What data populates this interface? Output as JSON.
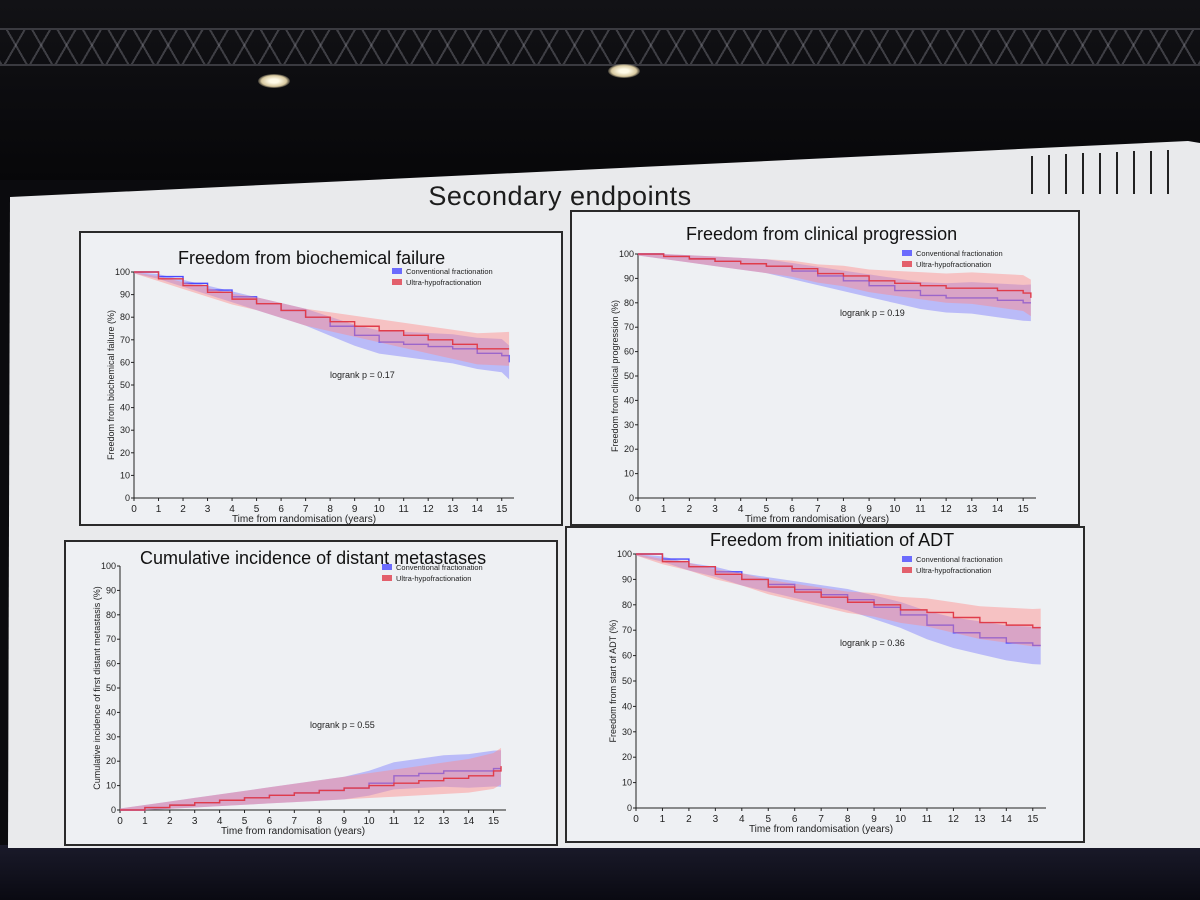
{
  "slide": {
    "title": "Secondary endpoints"
  },
  "colors": {
    "conventional": "#4a4aff",
    "ultra": "#e03c4a",
    "conventional_band": "#7b7bff",
    "ultra_band": "#ff8a8a"
  },
  "chart_data": [
    {
      "type": "line",
      "title": "Freedom from biochemical failure",
      "ylabel": "Freedom from biochemical failure (%)",
      "xlabel": "Time from randomisation (years)",
      "xlim": [
        0,
        15.5
      ],
      "ylim": [
        0,
        100
      ],
      "xticks": [
        "0",
        "1",
        "2",
        "3",
        "4",
        "5",
        "6",
        "7",
        "8",
        "9",
        "10",
        "11",
        "12",
        "13",
        "14",
        "15"
      ],
      "yticks": [
        "0",
        "10",
        "20",
        "30",
        "40",
        "50",
        "60",
        "70",
        "80",
        "90",
        "100"
      ],
      "annotation": "logrank p = 0.17",
      "legend_position": "top-right",
      "series": [
        {
          "name": "Conventional fractionation",
          "x": [
            0,
            1,
            2,
            3,
            4,
            5,
            6,
            7,
            8,
            9,
            10,
            11,
            12,
            13,
            14,
            15,
            15.3
          ],
          "values": [
            100,
            98,
            95,
            92,
            89,
            86,
            83,
            80,
            76,
            72,
            69,
            68,
            67,
            66,
            64,
            63,
            60
          ]
        },
        {
          "name": "Ultra-hypofractionation",
          "x": [
            0,
            1,
            2,
            3,
            4,
            5,
            6,
            7,
            8,
            9,
            10,
            11,
            12,
            13,
            14,
            15,
            15.3
          ],
          "values": [
            100,
            97,
            94,
            91,
            88,
            86,
            83,
            80,
            78,
            76,
            74,
            72,
            70,
            68,
            66,
            66,
            66
          ]
        }
      ]
    },
    {
      "type": "line",
      "title": "Freedom from clinical progression",
      "ylabel": "Freedom from clinical progression (%)",
      "xlabel": "Time from randomisation (years)",
      "xlim": [
        0,
        15.5
      ],
      "ylim": [
        0,
        100
      ],
      "xticks": [
        "0",
        "1",
        "2",
        "3",
        "4",
        "5",
        "6",
        "7",
        "8",
        "9",
        "10",
        "11",
        "12",
        "13",
        "14",
        "15"
      ],
      "yticks": [
        "0",
        "10",
        "20",
        "30",
        "40",
        "50",
        "60",
        "70",
        "80",
        "90",
        "100"
      ],
      "annotation": "logrank p = 0.19",
      "legend_position": "top-right",
      "series": [
        {
          "name": "Conventional fractionation",
          "x": [
            0,
            1,
            2,
            3,
            4,
            5,
            6,
            7,
            8,
            9,
            10,
            11,
            12,
            13,
            14,
            15,
            15.3
          ],
          "values": [
            100,
            99,
            98,
            97,
            96,
            95,
            93,
            91,
            89,
            87,
            85,
            83,
            82,
            82,
            81,
            80,
            80
          ]
        },
        {
          "name": "Ultra-hypofractionation",
          "x": [
            0,
            1,
            2,
            3,
            4,
            5,
            6,
            7,
            8,
            9,
            10,
            11,
            12,
            13,
            14,
            15,
            15.3
          ],
          "values": [
            100,
            99,
            98,
            97,
            96,
            95,
            94,
            92,
            91,
            89,
            88,
            87,
            86,
            86,
            85,
            84,
            82
          ]
        }
      ]
    },
    {
      "type": "line",
      "title": "Cumulative incidence of distant metastases",
      "ylabel": "Cumulative incidence of first distant metastasis (%)",
      "xlabel": "Time from randomisation (years)",
      "xlim": [
        0,
        15.5
      ],
      "ylim": [
        0,
        100
      ],
      "xticks": [
        "0",
        "1",
        "2",
        "3",
        "4",
        "5",
        "6",
        "7",
        "8",
        "9",
        "10",
        "11",
        "12",
        "13",
        "14",
        "15"
      ],
      "yticks": [
        "0",
        "10",
        "20",
        "30",
        "40",
        "50",
        "60",
        "70",
        "80",
        "90",
        "100"
      ],
      "annotation": "logrank p = 0.55",
      "legend_position": "top-right",
      "series": [
        {
          "name": "Conventional fractionation",
          "x": [
            0,
            1,
            2,
            3,
            4,
            5,
            6,
            7,
            8,
            9,
            10,
            11,
            12,
            13,
            14,
            15,
            15.3
          ],
          "values": [
            0,
            1,
            2,
            3,
            4,
            5,
            6,
            7,
            8,
            9,
            11,
            14,
            15,
            16,
            16,
            17,
            17
          ]
        },
        {
          "name": "Ultra-hypofractionation",
          "x": [
            0,
            1,
            2,
            3,
            4,
            5,
            6,
            7,
            8,
            9,
            10,
            11,
            12,
            13,
            14,
            15,
            15.3
          ],
          "values": [
            0,
            1,
            2,
            3,
            4,
            5,
            6,
            7,
            8,
            9,
            10,
            11,
            12,
            13,
            14,
            16,
            18
          ]
        }
      ]
    },
    {
      "type": "line",
      "title": "Freedom from initiation of ADT",
      "ylabel": "Freedom from start of ADT (%)",
      "xlabel": "Time from randomisation (years)",
      "xlim": [
        0,
        15.5
      ],
      "ylim": [
        0,
        100
      ],
      "xticks": [
        "0",
        "1",
        "2",
        "3",
        "4",
        "5",
        "6",
        "7",
        "8",
        "9",
        "10",
        "11",
        "12",
        "13",
        "14",
        "15"
      ],
      "yticks": [
        "0",
        "10",
        "20",
        "30",
        "40",
        "50",
        "60",
        "70",
        "80",
        "90",
        "100"
      ],
      "annotation": "logrank p = 0.36",
      "legend_position": "top-right",
      "series": [
        {
          "name": "Conventional fractionation",
          "x": [
            0,
            1,
            2,
            3,
            4,
            5,
            6,
            7,
            8,
            9,
            10,
            11,
            12,
            13,
            14,
            15,
            15.3
          ],
          "values": [
            100,
            98,
            95,
            93,
            90,
            88,
            86,
            84,
            82,
            79,
            76,
            72,
            69,
            67,
            65,
            64,
            64
          ]
        },
        {
          "name": "Ultra-hypofractionation",
          "x": [
            0,
            1,
            2,
            3,
            4,
            5,
            6,
            7,
            8,
            9,
            10,
            11,
            12,
            13,
            14,
            15,
            15.3
          ],
          "values": [
            100,
            97,
            95,
            92,
            90,
            87,
            85,
            83,
            81,
            80,
            78,
            77,
            75,
            73,
            72,
            71,
            71
          ]
        }
      ]
    }
  ]
}
